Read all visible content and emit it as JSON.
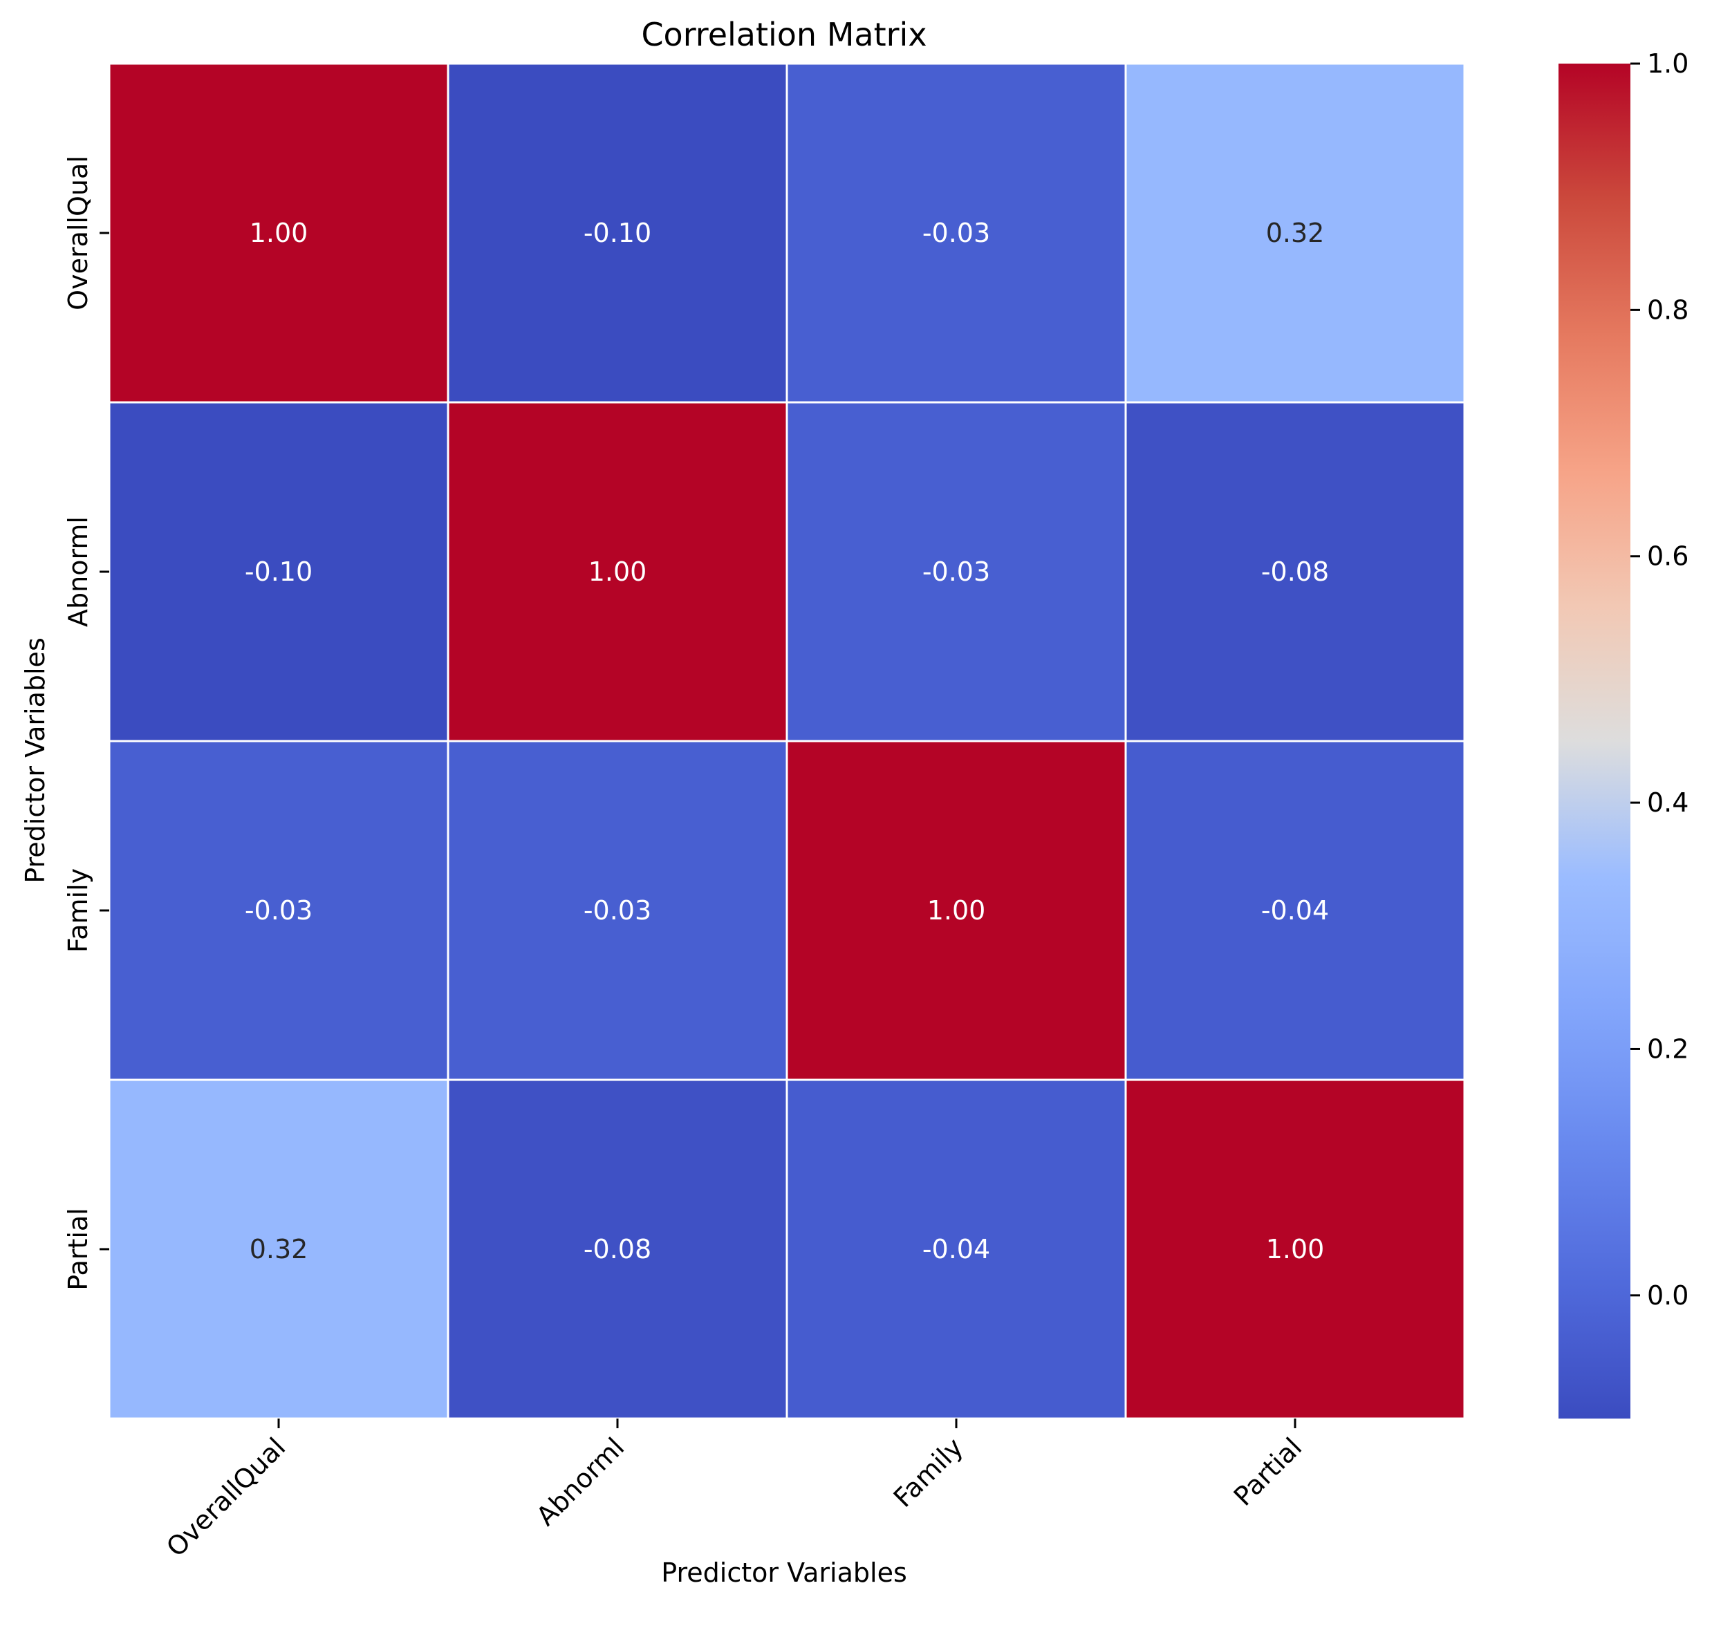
{
  "chart_data": {
    "type": "heatmap",
    "title": "Correlation Matrix",
    "xlabel": "Predictor Variables",
    "ylabel": "Predictor Variables",
    "x_categories": [
      "OverallQual",
      "Abnorml",
      "Family",
      "Partial"
    ],
    "y_categories": [
      "OverallQual",
      "Abnorml",
      "Family",
      "Partial"
    ],
    "values": [
      [
        1.0,
        -0.1,
        -0.03,
        0.32
      ],
      [
        -0.1,
        1.0,
        -0.03,
        -0.08
      ],
      [
        -0.03,
        -0.03,
        1.0,
        -0.04
      ],
      [
        0.32,
        -0.08,
        -0.04,
        1.0
      ]
    ],
    "value_format": "0.00",
    "colormap": "coolwarm",
    "vmin": -0.1,
    "vmax": 1.0,
    "colorbar_ticks": [
      "0.0",
      "0.2",
      "0.4",
      "0.6",
      "0.8",
      "1.0"
    ],
    "colorbar_tick_values": [
      0.0,
      0.2,
      0.4,
      0.6,
      0.8,
      1.0
    ],
    "cell_border_color": "#ffffff",
    "annotations_shown": true
  }
}
